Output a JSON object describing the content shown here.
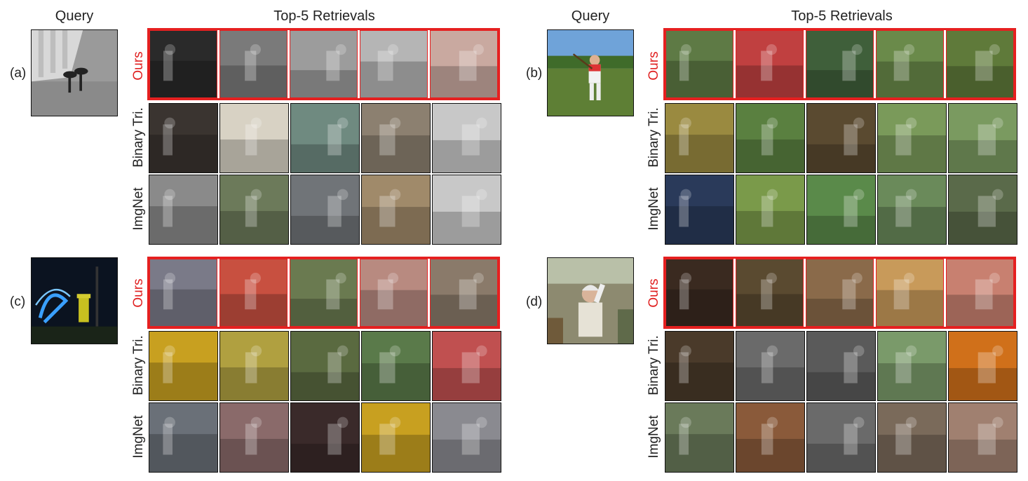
{
  "headers": {
    "query": "Query",
    "retrievals": "Top-5 Retrievals"
  },
  "row_labels": {
    "ours": "Ours",
    "binary": "Binary Tri.",
    "imagenet": "ImgNet"
  },
  "panels": [
    {
      "id": "a",
      "label": "(a)"
    },
    {
      "id": "b",
      "label": "(b)"
    },
    {
      "id": "c",
      "label": "(c)"
    },
    {
      "id": "d",
      "label": "(d)"
    }
  ],
  "colors": {
    "highlight": "#e52020",
    "ours_label": "#e02020",
    "border": "#111111"
  }
}
